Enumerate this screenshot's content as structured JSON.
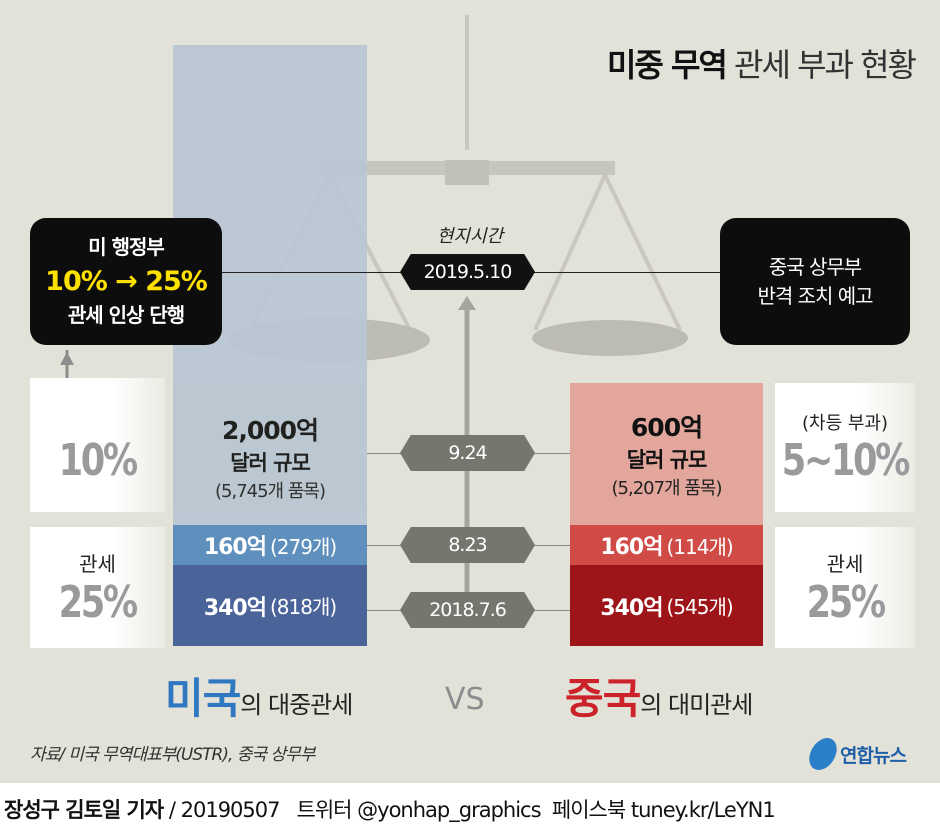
{
  "title": {
    "bold": "미중 무역",
    "regular": "관세 부과 현황"
  },
  "us_box": {
    "line1": "미 행정부",
    "line2": "10% → 25%",
    "line3": "관세 인상 단행"
  },
  "china_box": {
    "line1": "중국 상무부",
    "line2": "반격 조치 예고"
  },
  "timeline": {
    "local_time": "현지시간",
    "dates": [
      "2019.5.10",
      "9.24",
      "8.23",
      "2018.7.6"
    ]
  },
  "us": {
    "total": "2,000억",
    "unit": "달러 규모",
    "items": "(5,745개 품목)",
    "seg1_amount": "160억",
    "seg1_items": "(279개)",
    "seg2_amount": "340억",
    "seg2_items": "(818개)",
    "rate_top": "10%",
    "rate_label": "관세",
    "rate_bottom": "25%",
    "label_country": "미국",
    "label_rest": "의 대중관세"
  },
  "china": {
    "total": "600억",
    "unit": "달러 규모",
    "items": "(5,207개 품목)",
    "seg1_amount": "160억",
    "seg1_items": "(114개)",
    "seg2_amount": "340억",
    "seg2_items": "(545개)",
    "rate_note": "(차등 부과)",
    "rate_top": "5~10%",
    "rate_label": "관세",
    "rate_bottom": "25%",
    "label_country": "중국",
    "label_rest": "의 대미관세"
  },
  "vs": "VS",
  "source": "자료/ 미국 무역대표부(USTR), 중국 상무부",
  "logo": "연합뉴스",
  "footer": {
    "byline": "장성구 김토일 기자",
    "rest": " / 20190507   트위터 @yonhap_graphics  페이스북 tuney.kr/LeYN1"
  },
  "colors": {
    "us_light": "#b8c6d2",
    "us_mid": "#5f8fbd",
    "us_dark": "#4a6399",
    "cn_light": "#e3a69c",
    "cn_mid": "#d04a46",
    "cn_dark": "#9d1519"
  }
}
